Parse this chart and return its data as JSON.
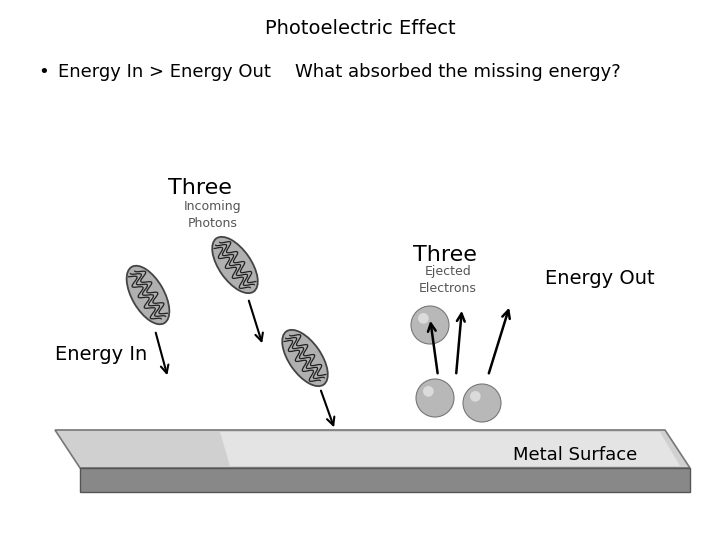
{
  "title": "Photoelectric Effect",
  "bullet_text": "Energy In > Energy Out",
  "question_text": "What absorbed the missing energy?",
  "label_three_photons": "Three",
  "label_incoming": "Incoming\nPhotons",
  "label_three_electrons": "Three",
  "label_ejected": "Ejected\nElectrons",
  "label_energy_in": "Energy In",
  "label_energy_out": "Energy Out",
  "label_metal": "Metal Surface",
  "bg_color": "#ffffff",
  "text_color": "#000000",
  "photon_fill": "#b0b0b0",
  "photon_edge": "#444444",
  "electron_fill": "#aaaaaa",
  "surface_top_color": "#d0d0d0",
  "surface_side_color": "#888888",
  "surface_bright_color": "#e8e8e8"
}
